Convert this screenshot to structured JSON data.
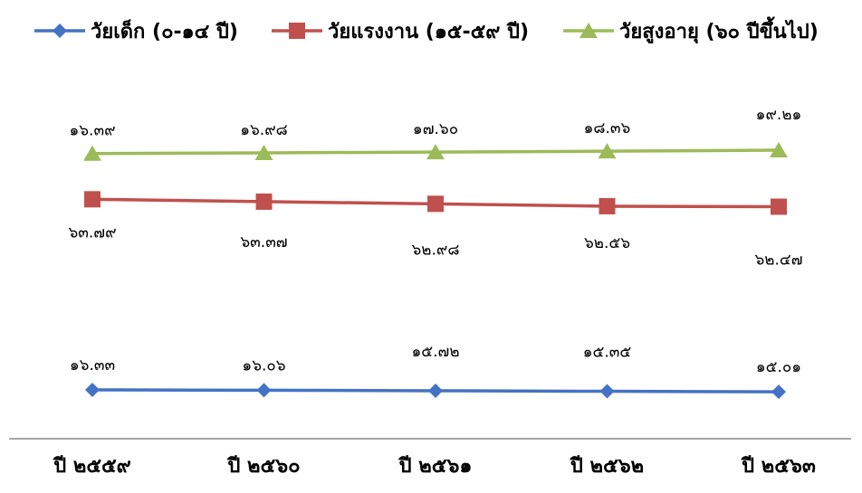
{
  "chart_data": {
    "type": "line",
    "categories": [
      "ปี ๒๕๕๙",
      "ปี ๒๕๖๐",
      "ปี ๒๕๖๑",
      "ปี ๒๕๖๒",
      "ปี ๒๕๖๓"
    ],
    "series": [
      {
        "name": "วัยเด็ก (๐-๑๔ ปี)",
        "color": "#4472C4",
        "marker": "diamond",
        "values": [
          16.33,
          16.06,
          15.72,
          15.35,
          15.01
        ],
        "labels": [
          "๑๖.๓๓",
          "๑๖.๐๖",
          "๑๕.๗๒",
          "๑๕.๓๕",
          "๑๕.๐๑"
        ]
      },
      {
        "name": "วัยแรงงาน (๑๕-๕๙ ปี)",
        "color": "#C0504D",
        "marker": "square",
        "values": [
          63.79,
          63.37,
          62.98,
          62.56,
          62.47
        ],
        "labels": [
          "๖๓.๗๙",
          "๖๓.๓๗",
          "๖๒.๙๘",
          "๖๒.๕๖",
          "๖๒.๔๗"
        ]
      },
      {
        "name": "วัยสูงอายุ (๖๐ ปีขึ้นไป)",
        "color": "#9BBB59",
        "marker": "triangle",
        "values": [
          16.39,
          16.98,
          17.6,
          18.36,
          19.21
        ],
        "labels": [
          "๑๖.๓๙",
          "๑๖.๙๘",
          "๑๗.๖๐",
          "๑๘.๓๖",
          "๑๙.๒๑"
        ]
      }
    ],
    "legend_position": "top",
    "grid": false
  }
}
